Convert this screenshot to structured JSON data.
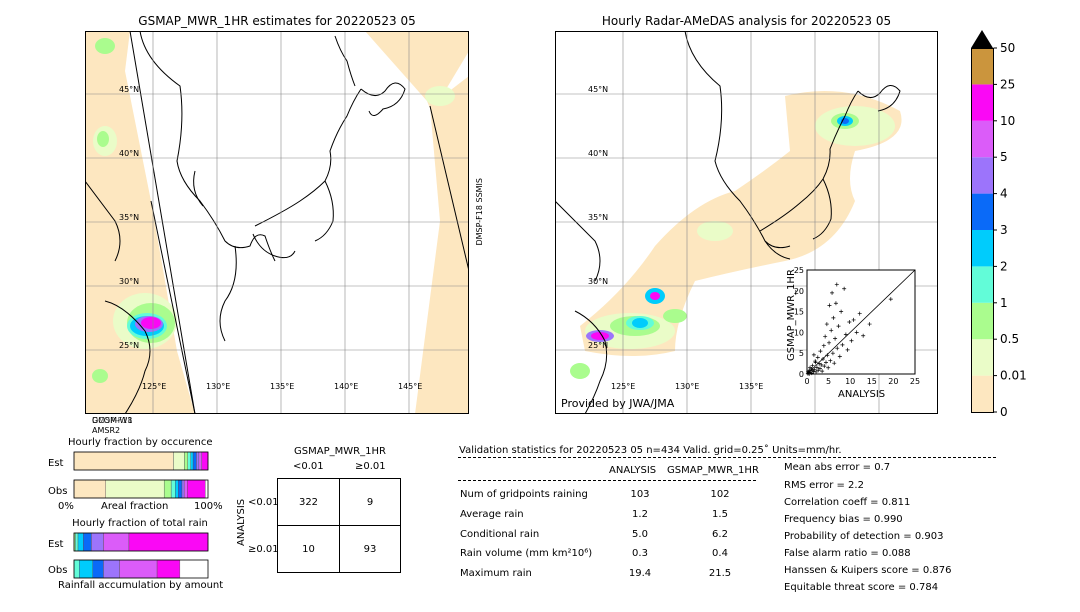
{
  "maps": {
    "left": {
      "title": "GSMAP_MWR_1HR estimates for 20220523 05",
      "lat_labels": [
        "45°N",
        "40°N",
        "35°N",
        "30°N",
        "25°N"
      ],
      "lon_labels": [
        "125°E",
        "130°E",
        "135°E",
        "140°E",
        "145°E"
      ],
      "sat_label_right": "DMSP-F18 SSMIS",
      "sat_label_bottom": [
        "GCOM-W1",
        "AMSR2",
        "DMSP-F18"
      ]
    },
    "right": {
      "title": "Hourly Radar-AMeDAS analysis for 20220523 05",
      "lat_labels": [
        "45°N",
        "40°N",
        "35°N",
        "30°N",
        "25°N"
      ],
      "lon_labels": [
        "125°E",
        "130°E",
        "135°E"
      ],
      "provider": "Provided by JWA/JMA"
    }
  },
  "colorbar": {
    "levels": [
      "0",
      "0.01",
      "0.5",
      "1",
      "2",
      "3",
      "4",
      "5",
      "10",
      "25",
      "50"
    ],
    "colors": [
      "#fde7c0",
      "#eafcc8",
      "#aafc8e",
      "#62fcd8",
      "#00ccfc",
      "#0a6af8",
      "#9c74fb",
      "#db5cf9",
      "#fa08f5",
      "#cb953d"
    ],
    "extend_color": "#000000"
  },
  "chart_data": [
    {
      "type": "scatter",
      "xlabel": "ANALYSIS",
      "ylabel": "GSMAP_MWR_1HR",
      "xlim": [
        0,
        25
      ],
      "ylim": [
        0,
        25
      ],
      "ticks": [
        "0",
        "5",
        "10",
        "15",
        "20",
        "25"
      ],
      "points": [
        [
          0.2,
          0.1
        ],
        [
          0.4,
          0.3
        ],
        [
          0.5,
          0.0
        ],
        [
          0.6,
          0.8
        ],
        [
          0.8,
          0.4
        ],
        [
          1.0,
          1.2
        ],
        [
          1.1,
          0.2
        ],
        [
          1.3,
          2.0
        ],
        [
          1.5,
          0.6
        ],
        [
          1.7,
          1.1
        ],
        [
          1.9,
          3.1
        ],
        [
          2.1,
          0.5
        ],
        [
          2.3,
          1.6
        ],
        [
          2.5,
          4.0
        ],
        [
          2.6,
          0.9
        ],
        [
          2.8,
          2.5
        ],
        [
          3.0,
          1.3
        ],
        [
          3.1,
          5.5
        ],
        [
          3.3,
          2.2
        ],
        [
          3.5,
          0.7
        ],
        [
          3.7,
          3.6
        ],
        [
          3.9,
          6.8
        ],
        [
          4.0,
          1.9
        ],
        [
          4.2,
          9.0
        ],
        [
          4.4,
          2.8
        ],
        [
          4.6,
          12.0
        ],
        [
          4.7,
          4.5
        ],
        [
          4.9,
          1.5
        ],
        [
          5.1,
          7.5
        ],
        [
          5.2,
          16.5
        ],
        [
          5.4,
          3.2
        ],
        [
          5.6,
          10.5
        ],
        [
          5.8,
          19.5
        ],
        [
          6.0,
          5.0
        ],
        [
          6.1,
          13.5
        ],
        [
          6.3,
          2.6
        ],
        [
          6.5,
          8.5
        ],
        [
          6.7,
          17.0
        ],
        [
          6.9,
          21.5
        ],
        [
          7.0,
          6.2
        ],
        [
          7.3,
          11.5
        ],
        [
          7.6,
          4.2
        ],
        [
          7.9,
          15.0
        ],
        [
          8.2,
          7.0
        ],
        [
          8.6,
          20.5
        ],
        [
          9.0,
          9.5
        ],
        [
          9.4,
          5.8
        ],
        [
          9.8,
          12.5
        ],
        [
          10.3,
          8.0
        ],
        [
          10.8,
          13.0
        ],
        [
          11.5,
          10.0
        ],
        [
          12.2,
          14.5
        ],
        [
          13.0,
          9.2
        ],
        [
          14.5,
          12.0
        ],
        [
          19.4,
          18.0
        ],
        [
          0.3,
          0.6
        ],
        [
          0.7,
          1.5
        ],
        [
          1.2,
          0.9
        ],
        [
          2.0,
          2.8
        ],
        [
          1.6,
          4.6
        ]
      ]
    },
    {
      "type": "bar",
      "title": "Hourly fraction by occurence",
      "categories": [
        "Est",
        "Obs"
      ],
      "axis_labels": [
        "0%",
        "Areal fraction",
        "100%"
      ],
      "series": [
        {
          "color": "#fde7c0",
          "values": [
            0.742,
            0.237
          ]
        },
        {
          "color": "#eafcc8",
          "values": [
            0.082,
            0.436
          ]
        },
        {
          "color": "#aafc8e",
          "values": [
            0.025,
            0.052
          ]
        },
        {
          "color": "#62fcd8",
          "values": [
            0.022,
            0.031
          ]
        },
        {
          "color": "#00ccfc",
          "values": [
            0.018,
            0.022
          ]
        },
        {
          "color": "#0a6af8",
          "values": [
            0.025,
            0.028
          ]
        },
        {
          "color": "#9c74fb",
          "values": [
            0.018,
            0.016
          ]
        },
        {
          "color": "#db5cf9",
          "values": [
            0.022,
            0.024
          ]
        },
        {
          "color": "#fa08f5",
          "values": [
            0.046,
            0.134
          ]
        }
      ]
    },
    {
      "type": "bar",
      "title": "Hourly fraction of total rain",
      "footer": "Rainfall accumulation by amount",
      "categories": [
        "Est",
        "Obs"
      ],
      "series": [
        {
          "color": "#aafc8e",
          "values": [
            0.01,
            0.0
          ]
        },
        {
          "color": "#62fcd8",
          "values": [
            0.02,
            0.04
          ]
        },
        {
          "color": "#00ccfc",
          "values": [
            0.04,
            0.1
          ]
        },
        {
          "color": "#0a6af8",
          "values": [
            0.06,
            0.08
          ]
        },
        {
          "color": "#9c74fb",
          "values": [
            0.09,
            0.12
          ]
        },
        {
          "color": "#db5cf9",
          "values": [
            0.19,
            0.28
          ]
        },
        {
          "color": "#fa08f5",
          "values": [
            0.59,
            0.17
          ]
        }
      ]
    }
  ],
  "contingency": {
    "title": "GSMAP_MWR_1HR",
    "col_labels": [
      "<0.01",
      "≥0.01"
    ],
    "row_axis": "ANALYSIS",
    "row_labels": [
      "<0.01",
      "≥0.01"
    ],
    "cells": [
      [
        "322",
        "9"
      ],
      [
        "10",
        "93"
      ]
    ]
  },
  "validation": {
    "header": "Validation statistics for 20220523 05   n=434 Valid. grid=0.25˚ Units=mm/hr.",
    "col_analysis": "ANALYSIS",
    "col_gsmap": "GSMAP_MWR_1HR",
    "rows": [
      {
        "label": "Num of gridpoints raining",
        "a": "103",
        "g": "102"
      },
      {
        "label": "Average rain",
        "a": "1.2",
        "g": "1.5"
      },
      {
        "label": "Conditional rain",
        "a": "5.0",
        "g": "6.2"
      },
      {
        "label": "Rain volume (mm km²10⁶)",
        "a": "0.3",
        "g": "0.4"
      },
      {
        "label": "Maximum rain",
        "a": "19.4",
        "g": "21.5"
      }
    ],
    "scores": [
      "Mean abs error =    0.7",
      "RMS error =    2.2",
      "Correlation coeff =  0.811",
      "Frequency bias =  0.990",
      "Probability of detection =  0.903",
      "False alarm ratio =  0.088",
      "Hanssen & Kuipers score =  0.876",
      "Equitable threat score =  0.784"
    ]
  }
}
